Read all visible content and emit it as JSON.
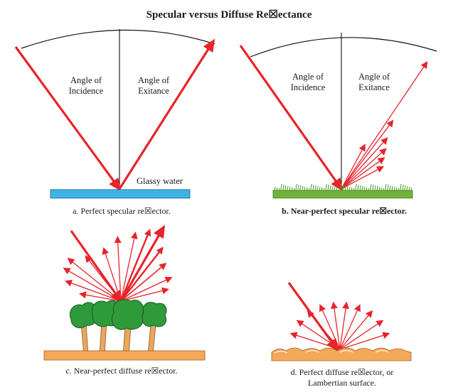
{
  "title": "Specular versus Diffuse Re☒ectance",
  "panel_a": {
    "angle_incidence": [
      "Angle of",
      "Incidence"
    ],
    "angle_exitance": [
      "Angle of",
      "Exitance"
    ],
    "surface_label": "Glassy water",
    "caption": "a. Perfect specular re☒ector."
  },
  "panel_b": {
    "angle_incidence": [
      "Angle of",
      "Incidence"
    ],
    "angle_exitance": [
      "Angle of",
      "Exitance"
    ],
    "caption": "b. Near-perfect specular re☒ector."
  },
  "panel_c": {
    "caption": "c. Near-perfect diffuse re☒ector."
  },
  "panel_d": {
    "caption": [
      "d. Perfect diffuse re☒ector, or",
      "Lambertian surface."
    ]
  },
  "colors": {
    "arrow": "#e8232a",
    "water": "#3cb4e8",
    "grass": "#6fb33a",
    "ground": "#f4a85a",
    "tree": "#2f9a3a",
    "trunk": "#e9a65c"
  }
}
